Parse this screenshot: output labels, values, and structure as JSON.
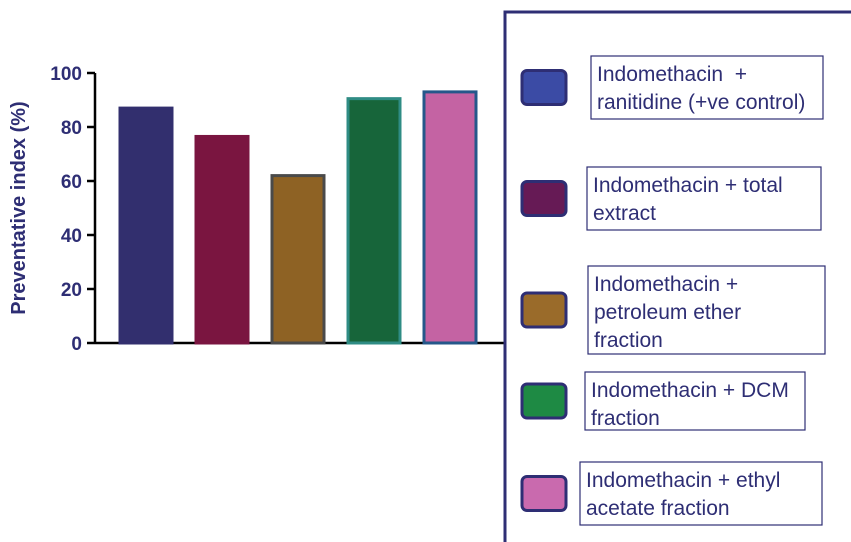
{
  "chart_data": {
    "type": "bar",
    "ylabel": "Preventative index (%)",
    "ylim": [
      0,
      100
    ],
    "yticks": [
      0,
      20,
      40,
      60,
      80,
      100
    ],
    "grid": false,
    "legend_position": "right",
    "categories": [
      "Indomethacin  + ranitidine (+ve control)",
      "Indomethacin + total extract",
      "Indomethacin + petroleum ether fraction",
      "Indomethacin + DCM fraction",
      "Indomethacin + ethyl acetate fraction"
    ],
    "values": [
      87,
      76.5,
      62,
      90.5,
      93
    ],
    "colors": [
      "#322f6e",
      "#7a1540",
      "#8e6224",
      "#17653a",
      "#c463a3"
    ],
    "edge_colors": [
      "#322f6e",
      "#7a1540",
      "#4a4a4a",
      "#2f8c84",
      "#25578a"
    ],
    "legend": {
      "entries": [
        {
          "lines": [
            "Indomethacin  +",
            "ranitidine (+ve control)"
          ],
          "swatch": "#3b4ba5"
        },
        {
          "lines": [
            "Indomethacin + total",
            "extract"
          ],
          "swatch": "#661a55"
        },
        {
          "lines": [
            "Indomethacin +",
            "petroleum ether",
            "fraction"
          ],
          "swatch": "#9a6b2a"
        },
        {
          "lines": [
            "Indomethacin + DCM",
            "fraction"
          ],
          "swatch": "#1e8a44"
        },
        {
          "lines": [
            "Indomethacin + ethyl",
            "acetate fraction"
          ],
          "swatch": "#c96aae"
        }
      ]
    }
  }
}
